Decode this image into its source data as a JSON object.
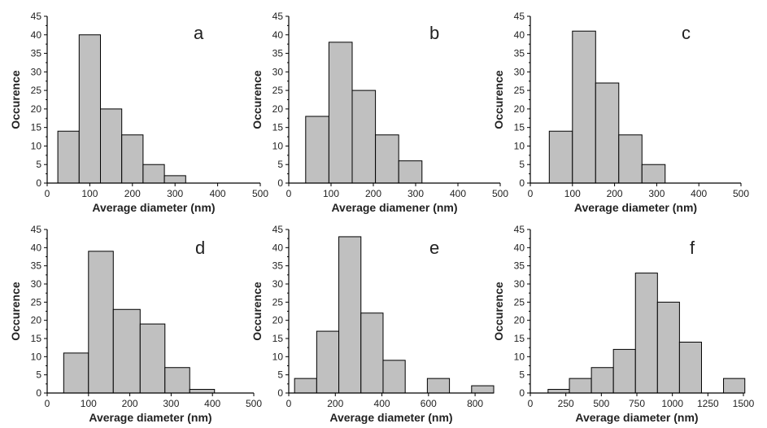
{
  "chart_data": [
    {
      "type": "bar",
      "panel_label": "a",
      "ylabel": "Occurence",
      "xlabel": "Average diameter (nm)",
      "xlim": [
        0,
        500
      ],
      "ylim": [
        0,
        45
      ],
      "xticks": [
        0,
        100,
        200,
        300,
        400,
        500
      ],
      "yticks": [
        0,
        5,
        10,
        15,
        20,
        25,
        30,
        35,
        40,
        45
      ],
      "bins": [
        [
          25,
          75
        ],
        [
          75,
          125
        ],
        [
          125,
          175
        ],
        [
          175,
          225
        ],
        [
          225,
          275
        ],
        [
          275,
          325
        ],
        [
          325,
          375
        ],
        [
          375,
          425
        ],
        [
          425,
          475
        ]
      ],
      "values": [
        14,
        40,
        20,
        13,
        5,
        2,
        0,
        0,
        0
      ],
      "bar_color": "#c0c0c0"
    },
    {
      "type": "bar",
      "panel_label": "b",
      "ylabel": "Occurence",
      "xlabel": "Average diamener (nm)",
      "xlim": [
        0,
        500
      ],
      "ylim": [
        0,
        45
      ],
      "xticks": [
        0,
        100,
        200,
        300,
        400,
        500
      ],
      "yticks": [
        0,
        5,
        10,
        15,
        20,
        25,
        30,
        35,
        40,
        45
      ],
      "bins": [
        [
          40,
          95
        ],
        [
          95,
          150
        ],
        [
          150,
          205
        ],
        [
          205,
          260
        ],
        [
          260,
          315
        ]
      ],
      "values": [
        18,
        38,
        25,
        13,
        6
      ],
      "bar_color": "#c0c0c0"
    },
    {
      "type": "bar",
      "panel_label": "c",
      "ylabel": "Occurence",
      "xlabel": "Average diameter (nm)",
      "xlim": [
        0,
        500
      ],
      "ylim": [
        0,
        45
      ],
      "xticks": [
        0,
        100,
        200,
        300,
        400,
        500
      ],
      "yticks": [
        0,
        5,
        10,
        15,
        20,
        25,
        30,
        35,
        40,
        45
      ],
      "bins": [
        [
          45,
          100
        ],
        [
          100,
          155
        ],
        [
          155,
          210
        ],
        [
          210,
          265
        ],
        [
          265,
          320
        ]
      ],
      "values": [
        14,
        41,
        27,
        13,
        5
      ],
      "bar_color": "#c0c0c0"
    },
    {
      "type": "bar",
      "panel_label": "d",
      "ylabel": "Occurence",
      "xlabel": "Average diameter (nm)",
      "xlim": [
        0,
        500
      ],
      "ylim": [
        0,
        45
      ],
      "xticks": [
        0,
        100,
        200,
        300,
        400,
        500
      ],
      "yticks": [
        0,
        5,
        10,
        15,
        20,
        25,
        30,
        35,
        40,
        45
      ],
      "bins": [
        [
          40,
          100
        ],
        [
          100,
          160
        ],
        [
          160,
          225
        ],
        [
          225,
          285
        ],
        [
          285,
          345
        ],
        [
          345,
          405
        ]
      ],
      "values": [
        11,
        39,
        23,
        19,
        7,
        1
      ],
      "bar_color": "#c0c0c0"
    },
    {
      "type": "bar",
      "panel_label": "e",
      "ylabel": "Occurence",
      "xlabel": "Average diameter (nm)",
      "xlim": [
        0,
        880
      ],
      "ylim": [
        0,
        45
      ],
      "xticks": [
        0,
        200,
        400,
        600,
        800
      ],
      "yticks": [
        0,
        5,
        10,
        15,
        20,
        25,
        30,
        35,
        40,
        45
      ],
      "bins": [
        [
          25,
          120
        ],
        [
          120,
          215
        ],
        [
          215,
          310
        ],
        [
          310,
          405
        ],
        [
          405,
          500
        ],
        [
          500,
          595
        ],
        [
          595,
          690
        ],
        [
          690,
          785
        ],
        [
          785,
          880
        ]
      ],
      "values": [
        4,
        17,
        43,
        22,
        9,
        0,
        4,
        0,
        2
      ],
      "bar_color": "#c0c0c0"
    },
    {
      "type": "bar",
      "panel_label": "f",
      "ylabel": "Occurence",
      "xlabel": "Average diameter (nm)",
      "xlim": [
        0,
        1500
      ],
      "ylim": [
        0,
        45
      ],
      "xticks": [
        0,
        250,
        500,
        750,
        1000,
        1250,
        1500
      ],
      "yticks": [
        0,
        5,
        10,
        15,
        20,
        25,
        30,
        35,
        40,
        45
      ],
      "bins": [
        [
          125,
          275
        ],
        [
          275,
          430
        ],
        [
          430,
          585
        ],
        [
          585,
          740
        ],
        [
          740,
          895
        ],
        [
          895,
          1050
        ],
        [
          1050,
          1205
        ],
        [
          1205,
          1360
        ],
        [
          1360,
          1510
        ]
      ],
      "values": [
        1,
        4,
        7,
        12,
        33,
        25,
        14,
        0,
        4
      ],
      "bar_color": "#c0c0c0"
    }
  ]
}
